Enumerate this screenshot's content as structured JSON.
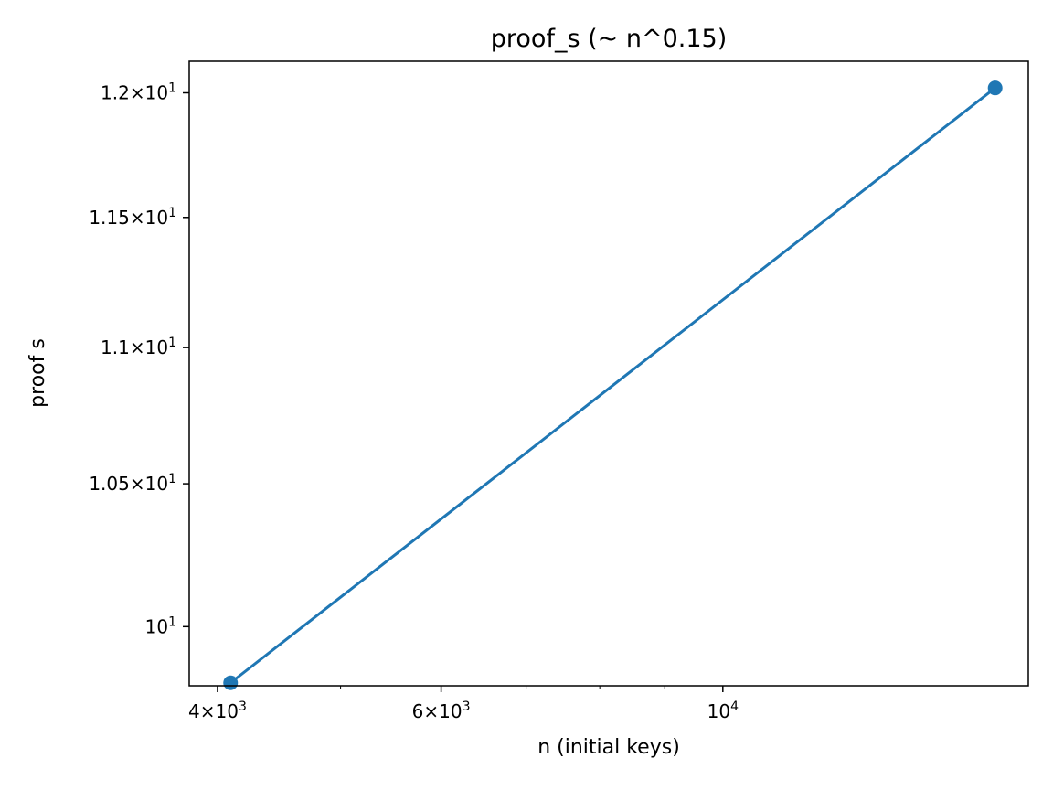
{
  "chart_data": {
    "type": "line",
    "title": "proof_s (~ n^0.15)",
    "xlabel": "n (initial keys)",
    "ylabel": "proof s",
    "x_scale": "log",
    "y_scale": "log",
    "xlim": [
      3800,
      17400
    ],
    "ylim": [
      9.8,
      12.13
    ],
    "grid": false,
    "legend": "none",
    "series": [
      {
        "color": "#1f77b4",
        "marker": "circle",
        "x": [
          4096,
          16384
        ],
        "y": [
          9.81,
          12.02
        ]
      }
    ],
    "x_ticks": [
      {
        "value": 4000,
        "mantissa": "4",
        "exp": "3"
      },
      {
        "value": 6000,
        "mantissa": "6",
        "exp": "3"
      },
      {
        "value": 10000,
        "mantissa": "",
        "exp": "4"
      }
    ],
    "x_minor_ticks": [
      5000,
      7000,
      8000,
      9000
    ],
    "y_ticks": [
      {
        "value": 10,
        "mantissa": "",
        "exp": "1"
      },
      {
        "value": 10.5,
        "mantissa": "1.05",
        "exp": "1"
      },
      {
        "value": 11,
        "mantissa": "1.1",
        "exp": "1"
      },
      {
        "value": 11.5,
        "mantissa": "1.15",
        "exp": "1"
      },
      {
        "value": 12,
        "mantissa": "1.2",
        "exp": "1"
      }
    ]
  }
}
